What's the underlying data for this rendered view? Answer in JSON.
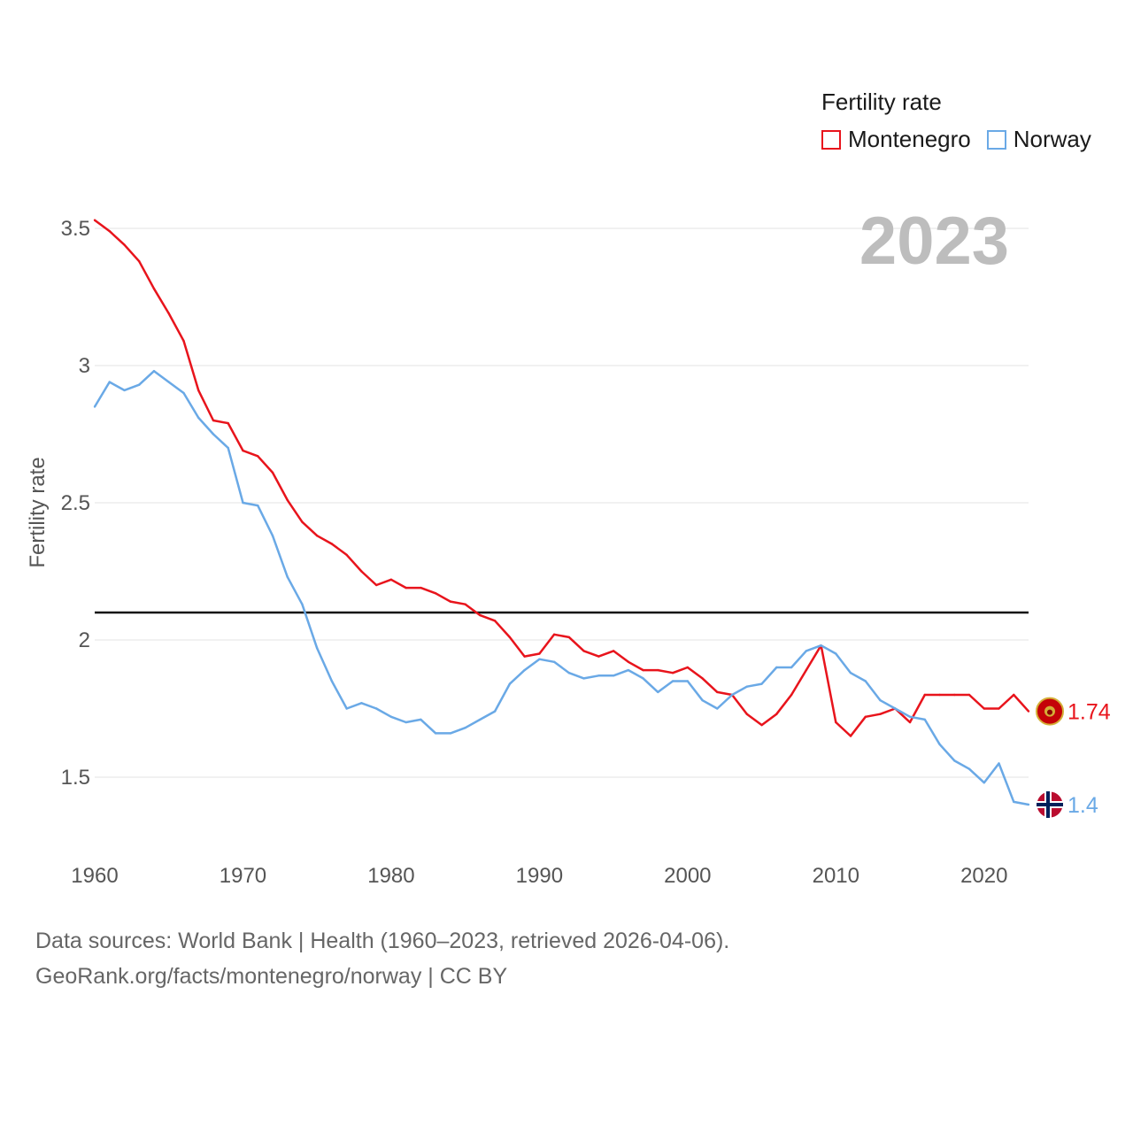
{
  "legend": {
    "title": "Fertility rate",
    "items": [
      {
        "label": "Montenegro",
        "color": "#e8141c"
      },
      {
        "label": "Norway",
        "color": "#6aa9e6"
      }
    ]
  },
  "footer": {
    "line1": "Data sources: World Bank | Health (1960–2023, retrieved 2026-04-06).",
    "line2": "GeoRank.org/facts/montenegro/norway | CC BY"
  },
  "chart_data": {
    "type": "line",
    "ylabel": "Fertility rate",
    "xlabel": "",
    "year_label": "2023",
    "xlim": [
      1960,
      2023
    ],
    "ylim": [
      1.3,
      3.5
    ],
    "x_ticks": [
      1960,
      1970,
      1980,
      1990,
      2000,
      2010,
      2020
    ],
    "y_ticks": [
      {
        "value": 1.5,
        "label": "1.5"
      },
      {
        "value": 2,
        "label": "2"
      },
      {
        "value": 2.5,
        "label": "2.5"
      },
      {
        "value": 3,
        "label": "3"
      },
      {
        "value": 3.5,
        "label": "3.5"
      }
    ],
    "reference_line": 2.1,
    "x": [
      1960,
      1961,
      1962,
      1963,
      1964,
      1965,
      1966,
      1967,
      1968,
      1969,
      1970,
      1971,
      1972,
      1973,
      1974,
      1975,
      1976,
      1977,
      1978,
      1979,
      1980,
      1981,
      1982,
      1983,
      1984,
      1985,
      1986,
      1987,
      1988,
      1989,
      1990,
      1991,
      1992,
      1993,
      1994,
      1995,
      1996,
      1997,
      1998,
      1999,
      2000,
      2001,
      2002,
      2003,
      2004,
      2005,
      2006,
      2007,
      2008,
      2009,
      2010,
      2011,
      2012,
      2013,
      2014,
      2015,
      2016,
      2017,
      2018,
      2019,
      2020,
      2021,
      2022,
      2023
    ],
    "series": [
      {
        "name": "Montenegro",
        "color": "#e8141c",
        "end_label": "1.74",
        "values": [
          3.53,
          3.49,
          3.44,
          3.38,
          3.28,
          3.19,
          3.09,
          2.91,
          2.8,
          2.79,
          2.69,
          2.67,
          2.61,
          2.51,
          2.43,
          2.38,
          2.35,
          2.31,
          2.25,
          2.2,
          2.22,
          2.19,
          2.19,
          2.17,
          2.14,
          2.13,
          2.09,
          2.07,
          2.01,
          1.94,
          1.95,
          2.02,
          2.01,
          1.96,
          1.94,
          1.96,
          1.92,
          1.89,
          1.89,
          1.88,
          1.9,
          1.86,
          1.81,
          1.8,
          1.73,
          1.69,
          1.73,
          1.8,
          1.89,
          1.98,
          1.7,
          1.65,
          1.72,
          1.73,
          1.75,
          1.7,
          1.8,
          1.8,
          1.8,
          1.8,
          1.75,
          1.75,
          1.8,
          1.74
        ]
      },
      {
        "name": "Norway",
        "color": "#6aa9e6",
        "end_label": "1.4",
        "values": [
          2.85,
          2.94,
          2.91,
          2.93,
          2.98,
          2.94,
          2.9,
          2.81,
          2.75,
          2.7,
          2.5,
          2.49,
          2.38,
          2.23,
          2.13,
          1.97,
          1.85,
          1.75,
          1.77,
          1.75,
          1.72,
          1.7,
          1.71,
          1.66,
          1.66,
          1.68,
          1.71,
          1.74,
          1.84,
          1.89,
          1.93,
          1.92,
          1.88,
          1.86,
          1.87,
          1.87,
          1.89,
          1.86,
          1.81,
          1.85,
          1.85,
          1.78,
          1.75,
          1.8,
          1.83,
          1.84,
          1.9,
          1.9,
          1.96,
          1.98,
          1.95,
          1.88,
          1.85,
          1.78,
          1.75,
          1.72,
          1.71,
          1.62,
          1.56,
          1.53,
          1.48,
          1.55,
          1.41,
          1.4
        ]
      }
    ]
  }
}
